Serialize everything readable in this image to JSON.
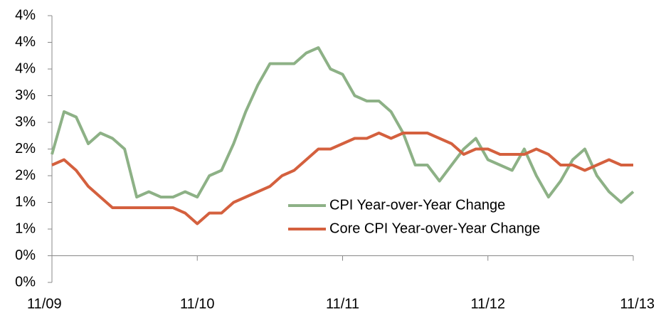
{
  "chart_data": {
    "type": "line",
    "categories": [
      "11/09",
      null,
      null,
      null,
      null,
      null,
      null,
      null,
      null,
      null,
      null,
      null,
      "11/10",
      null,
      null,
      null,
      null,
      null,
      null,
      null,
      null,
      null,
      null,
      null,
      "11/11",
      null,
      null,
      null,
      null,
      null,
      null,
      null,
      null,
      null,
      null,
      null,
      "11/12",
      null,
      null,
      null,
      null,
      null,
      null,
      null,
      null,
      null,
      null,
      null,
      "11/13"
    ],
    "series": [
      {
        "name": "CPI Year-over-Year Change",
        "color": "#8db186",
        "values": [
          1.9,
          2.7,
          2.6,
          2.1,
          2.3,
          2.2,
          2.0,
          1.1,
          1.2,
          1.1,
          1.1,
          1.2,
          1.1,
          1.5,
          1.6,
          2.1,
          2.7,
          3.2,
          3.6,
          3.6,
          3.6,
          3.8,
          3.9,
          3.5,
          3.4,
          3.0,
          2.9,
          2.9,
          2.7,
          2.3,
          1.7,
          1.7,
          1.4,
          1.7,
          2.0,
          2.2,
          1.8,
          1.7,
          1.6,
          2.0,
          1.5,
          1.1,
          1.4,
          1.8,
          2.0,
          1.5,
          1.2,
          1.0,
          1.2
        ]
      },
      {
        "name": "Core CPI Year-over-Year Change",
        "color": "#d4603e",
        "values": [
          1.7,
          1.8,
          1.6,
          1.3,
          1.1,
          0.9,
          0.9,
          0.9,
          0.9,
          0.9,
          0.9,
          0.8,
          0.6,
          0.8,
          0.8,
          1.0,
          1.1,
          1.2,
          1.3,
          1.5,
          1.6,
          1.8,
          2.0,
          2.0,
          2.1,
          2.2,
          2.2,
          2.3,
          2.2,
          2.3,
          2.3,
          2.3,
          2.2,
          2.1,
          1.9,
          2.0,
          2.0,
          1.9,
          1.9,
          1.9,
          2.0,
          1.9,
          1.7,
          1.7,
          1.6,
          1.7,
          1.8,
          1.7,
          1.7
        ]
      }
    ],
    "ylim": [
      -0.5,
      4.5
    ],
    "yticks": [
      {
        "value": -0.5,
        "label": "0%"
      },
      {
        "value": 0,
        "label": "0%"
      },
      {
        "value": 0.5,
        "label": "1%"
      },
      {
        "value": 1,
        "label": "1%"
      },
      {
        "value": 1.5,
        "label": "2%"
      },
      {
        "value": 2,
        "label": "2%"
      },
      {
        "value": 2.5,
        "label": "3%"
      },
      {
        "value": 3,
        "label": "3%"
      },
      {
        "value": 3.5,
        "label": "4%"
      },
      {
        "value": 4,
        "label": "4%"
      },
      {
        "value": 4.5,
        "label": "4%"
      }
    ],
    "grid": false
  }
}
